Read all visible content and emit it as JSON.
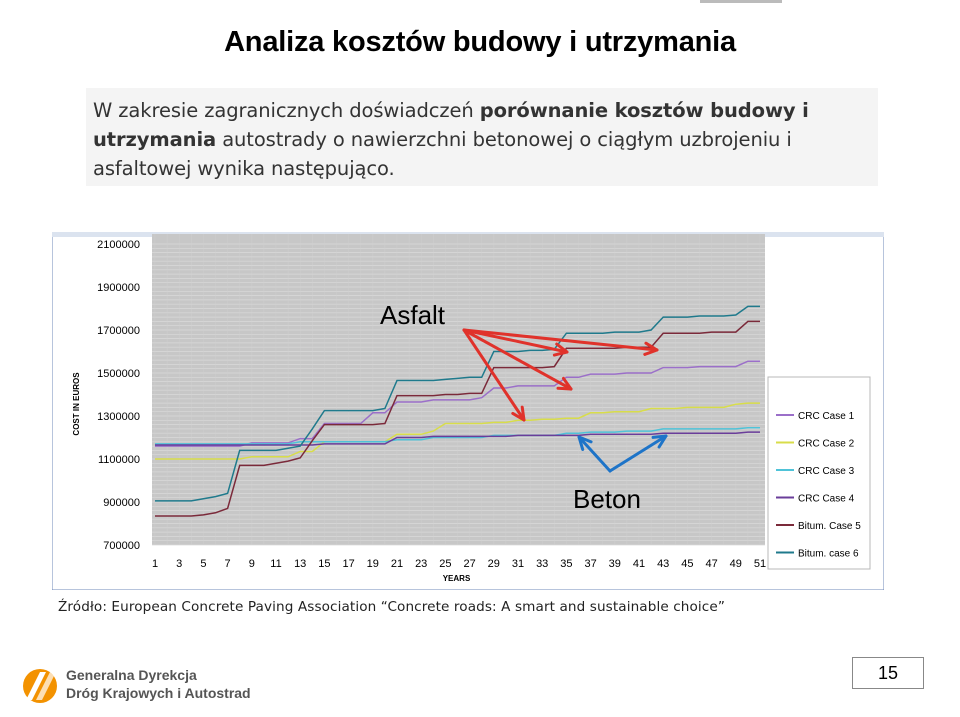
{
  "slide": {
    "title": "Analiza kosztów budowy i utrzymania",
    "intro_part1": "W zakresie zagranicznych doświadczeń ",
    "intro_bold": "porównanie kosztów budowy i utrzymania",
    "intro_part2": " autostrady o nawierzchni betonowej o ciągłym uzbrojeniu i asfaltowej wynika następująco.",
    "source": "Źródło: European Concrete Paving Association “Concrete roads: A smart and sustainable choice”",
    "page_number": "15",
    "logo_line1": "Generalna Dyrekcja",
    "logo_line2": "Dróg Krajowych i Autostrad"
  },
  "chart_data": {
    "type": "line",
    "title": "",
    "xlabel": "YEARS",
    "ylabel": "COST IN EUROS",
    "ylim": [
      700000,
      2100000
    ],
    "yticks": [
      "2100000",
      "1900000",
      "1700000",
      "1500000",
      "1300000",
      "1100000",
      "900000",
      "700000"
    ],
    "xticks": [
      "1",
      "3",
      "5",
      "7",
      "9",
      "11",
      "13",
      "15",
      "17",
      "19",
      "21",
      "23",
      "25",
      "27",
      "29",
      "31",
      "33",
      "35",
      "37",
      "39",
      "41",
      "43",
      "45",
      "47",
      "49",
      "51"
    ],
    "grid": true,
    "legend_position": "right",
    "annotations": {
      "asfalt": "Asfalt",
      "beton": "Beton"
    },
    "colors": {
      "crc1": "#9b6fc9",
      "crc2": "#d8dd4a",
      "crc3": "#4fc3d8",
      "crc4": "#6a3d9a",
      "bitum5": "#7b2a3a",
      "bitum6": "#1f7a8c",
      "arrow_red": "#e0322b",
      "arrow_blue": "#1e74c8",
      "plot_bg": "#c7c7c7"
    },
    "x": [
      1,
      2,
      3,
      4,
      5,
      6,
      7,
      8,
      9,
      10,
      11,
      12,
      13,
      14,
      15,
      16,
      17,
      18,
      19,
      20,
      21,
      22,
      23,
      24,
      25,
      26,
      27,
      28,
      29,
      30,
      31,
      32,
      33,
      34,
      35,
      36,
      37,
      38,
      39,
      40,
      41,
      42,
      43,
      44,
      45,
      46,
      47,
      48,
      49,
      50,
      51
    ],
    "series": [
      {
        "name": "CRC Case 1",
        "key": "crc1",
        "values": [
          1160000,
          1160000,
          1160000,
          1160000,
          1160000,
          1160000,
          1160000,
          1160000,
          1175000,
          1175000,
          1175000,
          1175000,
          1195000,
          1195000,
          1265000,
          1265000,
          1265000,
          1265000,
          1315000,
          1315000,
          1365000,
          1365000,
          1365000,
          1375000,
          1375000,
          1375000,
          1375000,
          1385000,
          1430000,
          1430000,
          1440000,
          1440000,
          1440000,
          1440000,
          1480000,
          1480000,
          1495000,
          1495000,
          1495000,
          1500000,
          1500000,
          1500000,
          1525000,
          1525000,
          1525000,
          1530000,
          1530000,
          1530000,
          1530000,
          1555000,
          1555000
        ]
      },
      {
        "name": "CRC Case 2",
        "key": "crc2",
        "values": [
          1100000,
          1100000,
          1100000,
          1100000,
          1100000,
          1100000,
          1100000,
          1100000,
          1110000,
          1110000,
          1110000,
          1110000,
          1135000,
          1135000,
          1180000,
          1180000,
          1180000,
          1180000,
          1180000,
          1180000,
          1215000,
          1215000,
          1215000,
          1230000,
          1265000,
          1265000,
          1265000,
          1265000,
          1270000,
          1270000,
          1280000,
          1280000,
          1285000,
          1285000,
          1290000,
          1290000,
          1315000,
          1315000,
          1320000,
          1320000,
          1320000,
          1335000,
          1335000,
          1335000,
          1340000,
          1340000,
          1340000,
          1340000,
          1355000,
          1360000,
          1360000
        ]
      },
      {
        "name": "CRC Case 3",
        "key": "crc3",
        "values": [
          1170000,
          1170000,
          1170000,
          1170000,
          1170000,
          1170000,
          1170000,
          1170000,
          1170000,
          1170000,
          1170000,
          1170000,
          1180000,
          1180000,
          1180000,
          1180000,
          1180000,
          1180000,
          1180000,
          1180000,
          1190000,
          1190000,
          1190000,
          1200000,
          1200000,
          1200000,
          1200000,
          1200000,
          1210000,
          1210000,
          1210000,
          1210000,
          1210000,
          1210000,
          1220000,
          1220000,
          1225000,
          1225000,
          1225000,
          1230000,
          1230000,
          1230000,
          1240000,
          1240000,
          1240000,
          1240000,
          1240000,
          1240000,
          1240000,
          1245000,
          1245000
        ]
      },
      {
        "name": "CRC Case 4",
        "key": "crc4",
        "values": [
          1165000,
          1165000,
          1165000,
          1165000,
          1165000,
          1165000,
          1165000,
          1165000,
          1165000,
          1165000,
          1165000,
          1165000,
          1165000,
          1165000,
          1170000,
          1170000,
          1170000,
          1170000,
          1170000,
          1170000,
          1200000,
          1200000,
          1200000,
          1205000,
          1205000,
          1205000,
          1205000,
          1205000,
          1205000,
          1205000,
          1210000,
          1210000,
          1210000,
          1210000,
          1210000,
          1210000,
          1215000,
          1215000,
          1215000,
          1215000,
          1215000,
          1215000,
          1220000,
          1220000,
          1220000,
          1220000,
          1220000,
          1220000,
          1220000,
          1225000,
          1225000
        ]
      },
      {
        "name": "Bitum. Case 5",
        "key": "bitum5",
        "values": [
          835000,
          835000,
          835000,
          835000,
          840000,
          850000,
          870000,
          1070000,
          1070000,
          1070000,
          1080000,
          1090000,
          1105000,
          1185000,
          1260000,
          1260000,
          1260000,
          1260000,
          1260000,
          1265000,
          1395000,
          1395000,
          1395000,
          1395000,
          1400000,
          1400000,
          1405000,
          1405000,
          1525000,
          1525000,
          1525000,
          1525000,
          1525000,
          1530000,
          1615000,
          1615000,
          1615000,
          1615000,
          1615000,
          1620000,
          1620000,
          1620000,
          1685000,
          1685000,
          1685000,
          1685000,
          1690000,
          1690000,
          1690000,
          1740000,
          1740000
        ]
      },
      {
        "name": "Bitum. case 6",
        "key": "bitum6",
        "values": [
          905000,
          905000,
          905000,
          905000,
          915000,
          925000,
          940000,
          1140000,
          1140000,
          1140000,
          1140000,
          1150000,
          1160000,
          1240000,
          1325000,
          1325000,
          1325000,
          1325000,
          1325000,
          1335000,
          1465000,
          1465000,
          1465000,
          1465000,
          1470000,
          1475000,
          1480000,
          1480000,
          1600000,
          1600000,
          1600000,
          1605000,
          1605000,
          1610000,
          1685000,
          1685000,
          1685000,
          1685000,
          1690000,
          1690000,
          1690000,
          1700000,
          1760000,
          1760000,
          1760000,
          1765000,
          1765000,
          1765000,
          1770000,
          1810000,
          1810000
        ]
      }
    ]
  }
}
